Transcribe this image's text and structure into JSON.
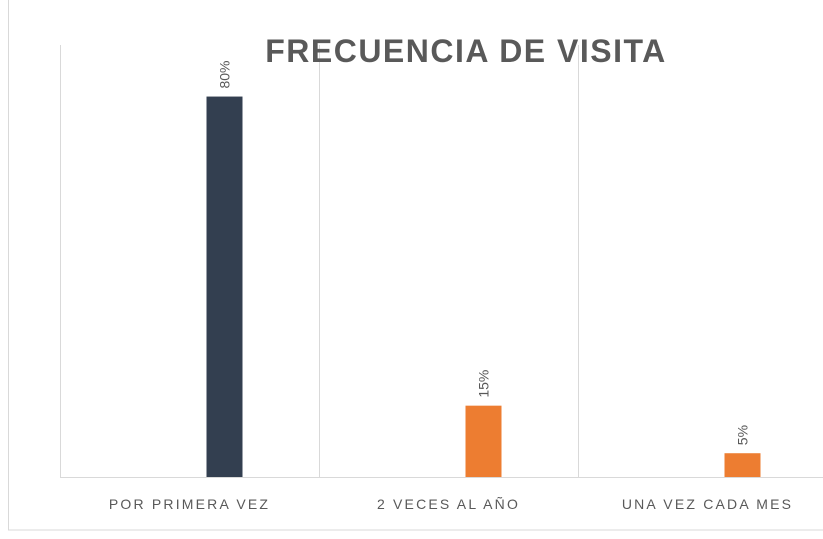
{
  "chart_data": {
    "type": "bar",
    "title": "FRECUENCIA DE VISITA",
    "categories": [
      "POR PRIMERA VEZ",
      "2 VECES AL AÑO",
      "UNA VEZ CADA MES"
    ],
    "values": [
      80,
      15,
      5
    ],
    "value_labels": [
      "80%",
      "15%",
      "5%"
    ],
    "colors": [
      "#333f50",
      "#ed7d31",
      "#ed7d31"
    ],
    "ylim": [
      0,
      90
    ]
  }
}
